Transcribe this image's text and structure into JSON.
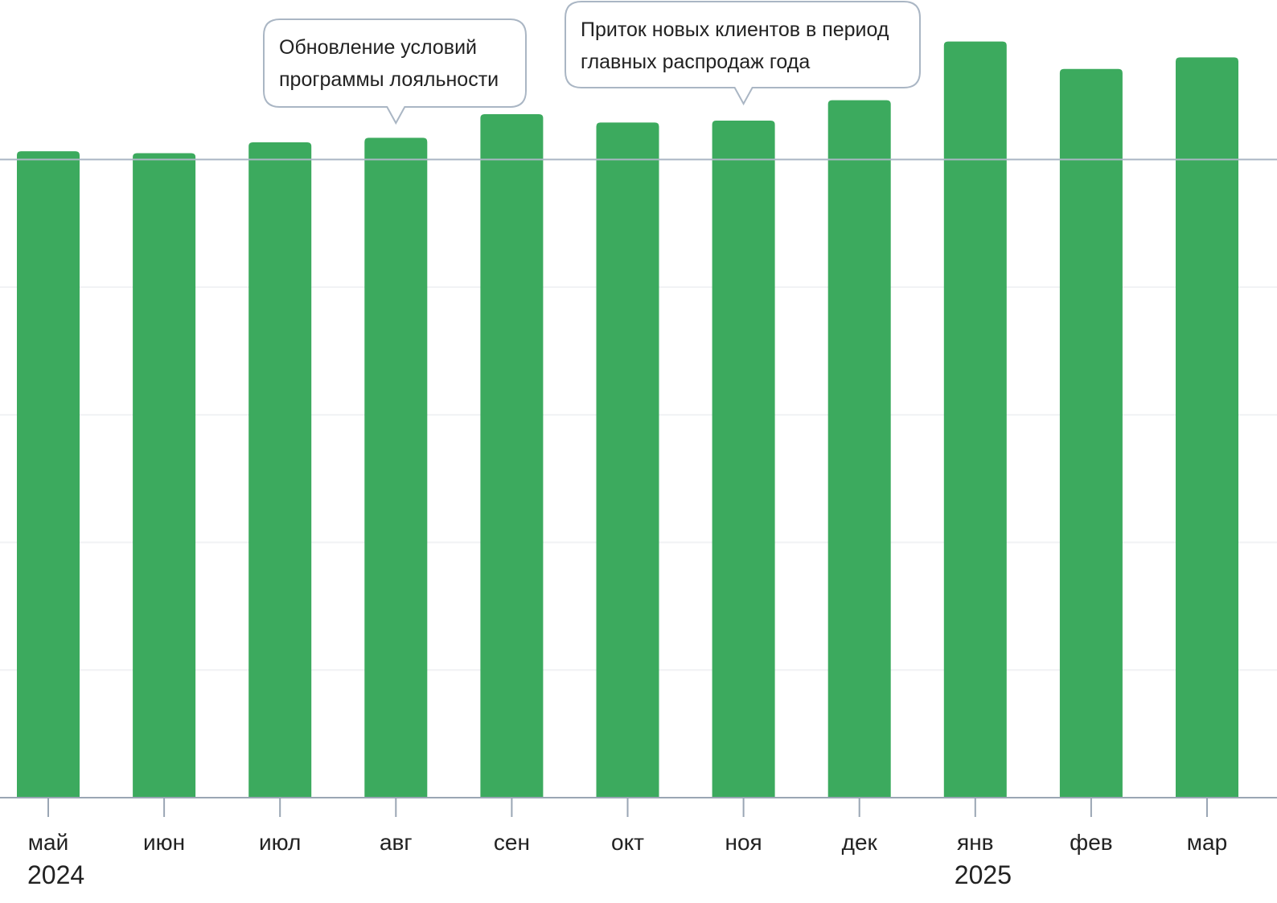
{
  "chart_data": {
    "type": "bar",
    "categories": [
      "май",
      "июн",
      "июл",
      "авг",
      "сен",
      "окт",
      "ноя",
      "дек",
      "янв",
      "фев",
      "мар"
    ],
    "years": [
      {
        "label": "2024",
        "category_index": 0
      },
      {
        "label": "2025",
        "category_index": 8
      }
    ],
    "values": [
      101.3,
      101.0,
      102.7,
      103.4,
      107.1,
      105.8,
      106.1,
      109.3,
      118.5,
      114.2,
      116.0
    ],
    "ylim": [
      0,
      125
    ],
    "reference_line": 100,
    "gridline_values": [
      20,
      40,
      60,
      80
    ],
    "grid": true,
    "title": "",
    "xlabel": "",
    "ylabel": "",
    "annotations": [
      {
        "category_index": 3,
        "lines": [
          "Обновление условий",
          "программы лояльности"
        ]
      },
      {
        "category_index": 6,
        "lines": [
          "Приток новых клиентов в период",
          "главных распродаж года"
        ]
      }
    ],
    "colors": {
      "bar": "#3caa5e",
      "reference_line": "#aab6c4",
      "gridline": "#f1f2f4",
      "axis": "#9aa6b4",
      "callout_border": "#aab6c4",
      "text": "#222222"
    }
  }
}
